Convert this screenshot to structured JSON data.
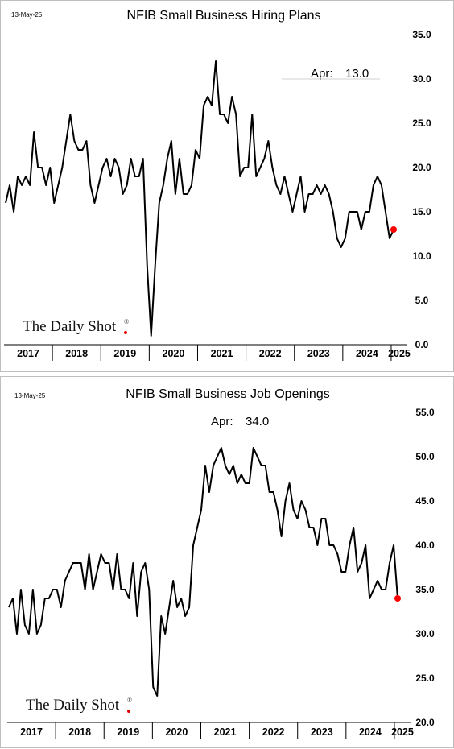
{
  "brand": {
    "logo_text": "The Daily Shot",
    "logo_mark": "®",
    "accent_color": "#e00000"
  },
  "colors": {
    "line": "#000000",
    "last_point": "#ff0000",
    "panel_border": "#bfbfbf"
  },
  "chart_data": [
    {
      "type": "line",
      "date_label": "13-May-25",
      "title": "NFIB Small Business Hiring Plans",
      "annotation": {
        "prefix": "Apr:",
        "value": "13.0"
      },
      "xlabel": "",
      "ylabel": "",
      "ylim": [
        0,
        35
      ],
      "yticks": [
        "35.0",
        "30.0",
        "25.0",
        "20.0",
        "15.0",
        "10.0",
        "5.0",
        "0.0"
      ],
      "ytick_values": [
        35,
        30,
        25,
        20,
        15,
        10,
        5,
        0
      ],
      "years": [
        "2017",
        "2018",
        "2019",
        "2020",
        "2021",
        "2022",
        "2023",
        "2024",
        "2025"
      ],
      "x_start": "2017-01",
      "x_end": "2025-04",
      "grid": false,
      "y_axis_side": "right",
      "series": [
        {
          "values": [
            16,
            18,
            15,
            19,
            18,
            19,
            18,
            24,
            20,
            20,
            18,
            20,
            16,
            18,
            20,
            23,
            26,
            23,
            22,
            22,
            23,
            18,
            16,
            18,
            20,
            21,
            19,
            21,
            20,
            17,
            18,
            21,
            19,
            19,
            21,
            9,
            1,
            9,
            16,
            18,
            21,
            23,
            17,
            21,
            17,
            17,
            18,
            22,
            21,
            27,
            28,
            27,
            32,
            26,
            26,
            25,
            28,
            26,
            19,
            20,
            20,
            26,
            19,
            20,
            21,
            23,
            20,
            18,
            17,
            19,
            17,
            15,
            17,
            19,
            15,
            17,
            17,
            18,
            17,
            18,
            17,
            15,
            12,
            11,
            12,
            15,
            15,
            15,
            13,
            15,
            15,
            18,
            19,
            18,
            15,
            12,
            13
          ]
        }
      ],
      "last_value": 13.0
    },
    {
      "type": "line",
      "date_label": "13-May-25",
      "title": "NFIB Small Business Job Openings",
      "annotation": {
        "prefix": "Apr:",
        "value": "34.0"
      },
      "xlabel": "",
      "ylabel": "",
      "ylim": [
        20,
        55
      ],
      "yticks": [
        "55.0",
        "50.0",
        "45.0",
        "40.0",
        "35.0",
        "30.0",
        "25.0",
        "20.0"
      ],
      "ytick_values": [
        55,
        50,
        45,
        40,
        35,
        30,
        25,
        20
      ],
      "years": [
        "2017",
        "2018",
        "2019",
        "2020",
        "2021",
        "2022",
        "2023",
        "2024",
        "2025"
      ],
      "x_start": "2017-01",
      "x_end": "2025-04",
      "grid": false,
      "y_axis_side": "right",
      "series": [
        {
          "values": [
            33,
            34,
            30,
            35,
            31,
            30,
            35,
            30,
            31,
            34,
            34,
            35,
            35,
            33,
            36,
            37,
            38,
            38,
            38,
            35,
            39,
            35,
            37,
            39,
            38,
            38,
            35,
            39,
            35,
            35,
            34,
            38,
            32,
            37,
            38,
            35,
            24,
            23,
            32,
            30,
            33,
            36,
            33,
            34,
            32,
            33,
            40,
            42,
            44,
            49,
            46,
            49,
            50,
            51,
            49,
            48,
            49,
            47,
            48,
            47,
            47,
            51,
            50,
            49,
            49,
            46,
            46,
            44,
            41,
            45,
            47,
            44,
            43,
            45,
            44,
            42,
            42,
            40,
            43,
            43,
            40,
            40,
            39,
            37,
            37,
            40,
            42,
            37,
            38,
            40,
            34,
            35,
            36,
            35,
            35,
            38,
            40,
            34
          ]
        }
      ],
      "last_value": 34.0
    }
  ]
}
